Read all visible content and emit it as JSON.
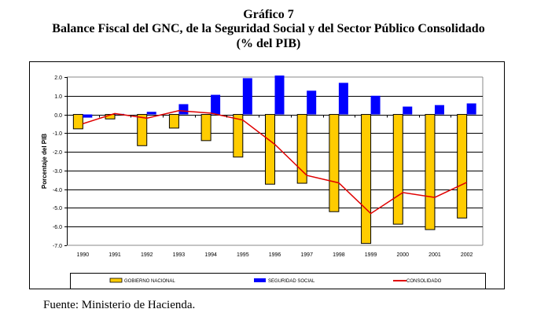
{
  "header": {
    "chart_number": "Gráfico 7",
    "title": "Balance Fiscal del GNC, de la Seguridad Social y del Sector Público Consolidado",
    "subtitle": "(% del PIB)"
  },
  "footer": {
    "source": "Fuente: Ministerio de Hacienda."
  },
  "chart_data": {
    "type": "bar",
    "title": "Balance Fiscal del GNC, de la Seguridad Social y del Sector Público Consolidado",
    "subtitle": "(% del PIB)",
    "xlabel": "",
    "ylabel": "Porcentaje del  PIB",
    "ylim": [
      -7.0,
      2.0
    ],
    "yticks": [
      2.0,
      1.0,
      0.0,
      -1.0,
      -2.0,
      -3.0,
      -4.0,
      -5.0,
      -6.0,
      -7.0
    ],
    "ytick_labels": [
      "2.0",
      "1.0",
      "0.0",
      "-1.0",
      "-2.0",
      "-3.0",
      "-4.0",
      "-5.0",
      "-6.0",
      "-7.0"
    ],
    "grid": true,
    "legend_position": "bottom",
    "categories": [
      "1990",
      "1991",
      "1992",
      "1993",
      "1994",
      "1995",
      "1996",
      "1997",
      "1998",
      "1999",
      "2000",
      "2001",
      "2002"
    ],
    "series": [
      {
        "name": "GOBIERNO NACIONAL",
        "type": "bar",
        "color": "#FFCC00",
        "values": [
          -0.77,
          -0.24,
          -1.67,
          -0.73,
          -1.4,
          -2.28,
          -3.73,
          -3.68,
          -5.2,
          -6.9,
          -5.87,
          -6.16,
          -5.54
        ]
      },
      {
        "name": "SEGURIDAD SOCIAL",
        "type": "bar",
        "color": "#0000FF",
        "values": [
          -0.17,
          0.03,
          0.14,
          0.55,
          1.05,
          1.94,
          2.08,
          1.27,
          1.69,
          1.0,
          0.42,
          0.5,
          0.59
        ]
      },
      {
        "name": "CONSOLIDADO",
        "type": "line",
        "color": "#E00000",
        "values": [
          -0.5,
          0.05,
          -0.2,
          0.2,
          0.07,
          -0.3,
          -1.6,
          -3.26,
          -3.66,
          -5.3,
          -4.18,
          -4.44,
          -3.63
        ]
      }
    ]
  }
}
